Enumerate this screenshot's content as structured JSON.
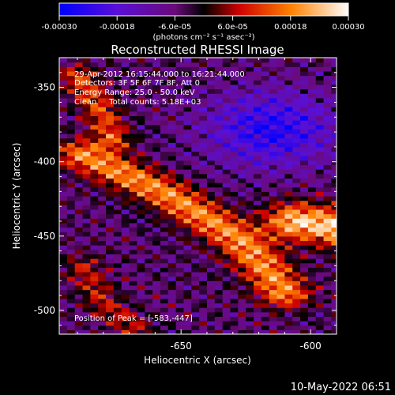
{
  "figure": {
    "title": "Reconstructed RHESSI Image",
    "footer_timestamp": "10-May-2022 06:51",
    "colorbar": {
      "tick_labels": [
        "-0.00030",
        "-0.00018",
        "-6.0e-05",
        "6.0e-05",
        "0.00018",
        "0.00030"
      ],
      "unit_label": "(photons cm⁻² s⁻¹ asec⁻²)"
    },
    "annotations": {
      "time_range": "29-Apr-2012 16:15:44.000 to 16:21:44.000",
      "detectors": "Detectors: 3F 5F 6F 7F 8F, Att 0",
      "energy_range": "Energy Range: 25.0 - 50.0 keV",
      "clean_counts": "Clean     Total counts: 5.18E+03",
      "peak_position": "Position of Peak = [-583,-447]"
    }
  },
  "chart_data": {
    "type": "heatmap",
    "title": "Reconstructed RHESSI Image",
    "xlabel": "Heliocentric X (arcsec)",
    "ylabel": "Heliocentric Y (arcsec)",
    "xlim": [
      -697,
      -590
    ],
    "ylim": [
      -516,
      -330
    ],
    "x_ticks": [
      -650,
      -600,
      -550
    ],
    "y_ticks": [
      -350,
      -400,
      -450,
      -500
    ],
    "color_scale": {
      "min": -0.0003,
      "max": 0.0003,
      "ticks": [
        -0.0003,
        -0.00018,
        -6e-05,
        6e-05,
        0.00018,
        0.0003
      ],
      "colormap": [
        "#0000ff",
        "#a020f0",
        "#000000",
        "#cc0000",
        "#ff8c00",
        "#ffffff"
      ]
    },
    "peak": {
      "x": -583,
      "y": -447
    },
    "total_counts": 5180,
    "energy_range_kev": [
      25.0,
      50.0
    ],
    "emission_ridges": [
      {
        "points": [
          [
            -688,
            -395
          ],
          [
            -672,
            -408
          ],
          [
            -655,
            -422
          ],
          [
            -640,
            -438
          ],
          [
            -628,
            -452
          ],
          [
            -618,
            -470
          ],
          [
            -610,
            -488
          ]
        ],
        "amplitude": 0.00024,
        "width": 7
      },
      {
        "points": [
          [
            -605,
            -440
          ],
          [
            -592,
            -443
          ],
          [
            -578,
            -447
          ],
          [
            -566,
            -445
          ]
        ],
        "amplitude": 0.0003,
        "width": 9
      },
      {
        "points": [
          [
            -578,
            -447
          ],
          [
            -574,
            -462
          ],
          [
            -568,
            -480
          ],
          [
            -556,
            -492
          ],
          [
            -540,
            -498
          ]
        ],
        "amplitude": 0.00022,
        "width": 6
      },
      {
        "points": [
          [
            -556,
            -425
          ],
          [
            -542,
            -410
          ],
          [
            -528,
            -398
          ]
        ],
        "amplitude": 0.00018,
        "width": 6
      },
      {
        "points": [
          [
            -690,
            -342
          ],
          [
            -682,
            -362
          ],
          [
            -676,
            -385
          ]
        ],
        "amplitude": 0.00017,
        "width": 5
      },
      {
        "points": [
          [
            -560,
            -333
          ],
          [
            -550,
            -345
          ],
          [
            -540,
            -352
          ]
        ],
        "amplitude": 0.0002,
        "width": 5
      },
      {
        "points": [
          [
            -688,
            -470
          ],
          [
            -680,
            -495
          ],
          [
            -668,
            -512
          ]
        ],
        "amplitude": 0.00012,
        "width": 5
      }
    ],
    "negative_region": {
      "x": -615,
      "y": -378,
      "amplitude": -0.0002,
      "width": 18
    }
  }
}
